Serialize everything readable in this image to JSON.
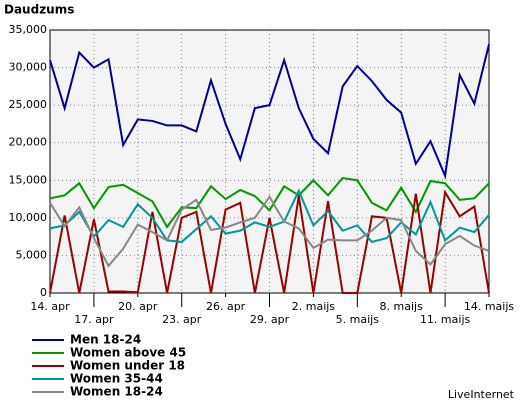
{
  "chart_data": {
    "type": "line",
    "title": "Daudzums",
    "source": "LiveInternet",
    "categories": [
      "14. apr",
      null,
      null,
      "17. apr",
      null,
      null,
      "20. apr",
      null,
      null,
      "23. apr",
      null,
      null,
      "26. apr",
      null,
      null,
      "29. apr",
      null,
      null,
      "2. maijs",
      null,
      null,
      "5. maijs",
      null,
      null,
      "8. maijs",
      null,
      null,
      "11. maijs",
      null,
      null,
      "14. maijs"
    ],
    "ylim": [
      0,
      35000
    ],
    "yticks": [
      0,
      {
        "value": 5000,
        "label": "5,000"
      },
      {
        "value": 10000,
        "label": "10,000"
      },
      {
        "value": 15000,
        "label": "15,000"
      },
      {
        "value": 20000,
        "label": "20,000"
      },
      {
        "value": 25000,
        "label": "25,000"
      },
      {
        "value": 30000,
        "label": "30,000"
      },
      {
        "value": 35000,
        "label": "35,000"
      }
    ],
    "grid": true,
    "series": [
      {
        "name": "Men 18-24",
        "color": "#000099",
        "values": [
          31000,
          24600,
          32000,
          30000,
          31100,
          19700,
          23100,
          22900,
          22300,
          22300,
          21500,
          28300,
          22500,
          17800,
          24600,
          25000,
          31000,
          24600,
          20500,
          18600,
          27500,
          30200,
          28200,
          25700,
          24000,
          17200,
          20200,
          15600,
          29000,
          25200,
          33100
        ]
      },
      {
        "name": "Women above 45",
        "color": "#009900",
        "values": [
          12600,
          13000,
          14600,
          11300,
          14100,
          14400,
          13300,
          12200,
          8800,
          11400,
          11300,
          14200,
          12500,
          13700,
          12900,
          11000,
          14200,
          13000,
          15000,
          13000,
          15300,
          15000,
          12000,
          11000,
          14000,
          10800,
          14900,
          14600,
          12400,
          12600,
          14600
        ]
      },
      {
        "name": "Women under 18",
        "color": "#990000",
        "values": [
          0,
          10300,
          0,
          9800,
          200,
          200,
          100,
          10800,
          0,
          10000,
          10800,
          0,
          11100,
          12000,
          0,
          10000,
          0,
          12900,
          0,
          12200,
          0,
          0,
          10200,
          10000,
          0,
          13200,
          0,
          13400,
          10200,
          11500,
          0
        ]
      },
      {
        "name": "Women 35-44",
        "color": "#009999",
        "values": [
          8600,
          9000,
          10800,
          7500,
          9700,
          8800,
          11800,
          10000,
          7000,
          6800,
          8500,
          10200,
          7900,
          8300,
          9400,
          8800,
          9500,
          13600,
          9000,
          10900,
          8300,
          9000,
          6800,
          7300,
          9400,
          7800,
          12100,
          7000,
          8700,
          8100,
          10400
        ]
      },
      {
        "name": "Women 18-24",
        "color": "#888888",
        "values": [
          12000,
          8900,
          11400,
          7300,
          3600,
          5900,
          9100,
          8100,
          7000,
          11100,
          12400,
          8400,
          8700,
          9400,
          10000,
          12800,
          9500,
          8600,
          6000,
          7100,
          7000,
          7000,
          8300,
          10000,
          9700,
          5600,
          3800,
          6500,
          7600,
          6300,
          5600
        ]
      }
    ]
  }
}
